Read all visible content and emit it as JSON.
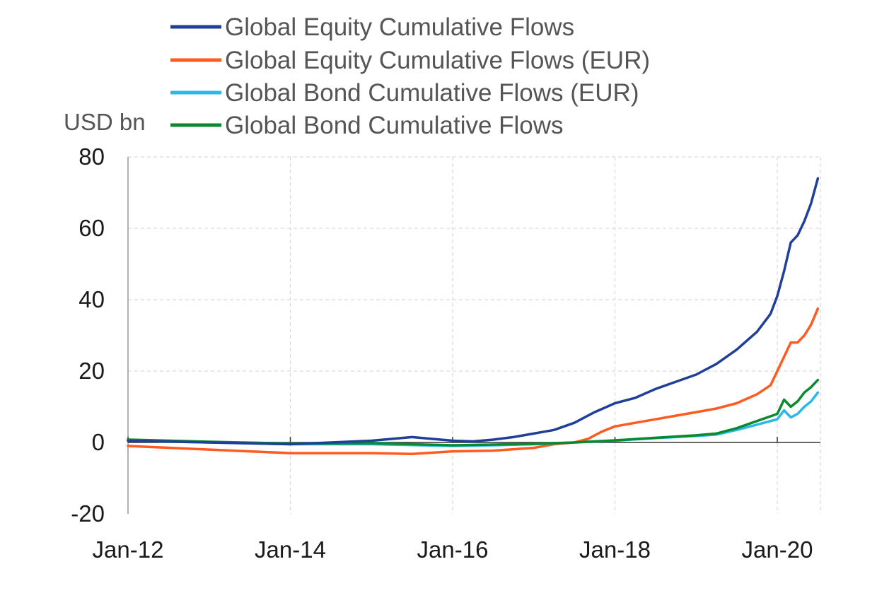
{
  "chart_data": {
    "type": "line",
    "ylabel": "USD bn",
    "ylim": [
      -20,
      80
    ],
    "yticks": [
      "80",
      "60",
      "40",
      "20",
      "0",
      "-20"
    ],
    "ytick_values": [
      80,
      60,
      40,
      20,
      0,
      -20
    ],
    "xlim": [
      "2012-01",
      "2020-07"
    ],
    "xticks": [
      "Jan-12",
      "Jan-14",
      "Jan-16",
      "Jan-18",
      "Jan-20"
    ],
    "xtick_values": [
      "2012-01",
      "2014-01",
      "2016-01",
      "2018-01",
      "2020-01"
    ],
    "grid": true,
    "legend_position": "top",
    "series": [
      {
        "name": "Global Equity Cumulative Flows",
        "color": "#1f3f99",
        "points": [
          [
            "2012-01",
            0.5
          ],
          [
            "2013-01",
            0.0
          ],
          [
            "2014-01",
            -0.5
          ],
          [
            "2014-07",
            0.0
          ],
          [
            "2015-01",
            0.5
          ],
          [
            "2015-04",
            1.0
          ],
          [
            "2015-07",
            1.5
          ],
          [
            "2015-10",
            1.0
          ],
          [
            "2016-01",
            0.5
          ],
          [
            "2016-04",
            0.3
          ],
          [
            "2016-07",
            0.8
          ],
          [
            "2016-10",
            1.5
          ],
          [
            "2017-01",
            2.5
          ],
          [
            "2017-04",
            3.5
          ],
          [
            "2017-07",
            5.5
          ],
          [
            "2017-10",
            8.5
          ],
          [
            "2018-01",
            11.0
          ],
          [
            "2018-04",
            12.5
          ],
          [
            "2018-07",
            15.0
          ],
          [
            "2018-10",
            17.0
          ],
          [
            "2019-01",
            19.0
          ],
          [
            "2019-04",
            22.0
          ],
          [
            "2019-07",
            26.0
          ],
          [
            "2019-10",
            31.0
          ],
          [
            "2019-12",
            36.0
          ],
          [
            "2020-01",
            41.0
          ],
          [
            "2020-02",
            48.0
          ],
          [
            "2020-03",
            56.0
          ],
          [
            "2020-04",
            58.0
          ],
          [
            "2020-05",
            62.0
          ],
          [
            "2020-06",
            67.0
          ],
          [
            "2020-07",
            74.0
          ]
        ]
      },
      {
        "name": "Global Equity Cumulative Flows (EUR)",
        "color": "#ff5a1f",
        "points": [
          [
            "2012-01",
            -1.0
          ],
          [
            "2013-01",
            -2.0
          ],
          [
            "2014-01",
            -3.0
          ],
          [
            "2014-07",
            -3.0
          ],
          [
            "2015-01",
            -3.0
          ],
          [
            "2015-07",
            -3.2
          ],
          [
            "2016-01",
            -2.5
          ],
          [
            "2016-07",
            -2.3
          ],
          [
            "2017-01",
            -1.5
          ],
          [
            "2017-04",
            -0.5
          ],
          [
            "2017-07",
            0.0
          ],
          [
            "2017-09",
            1.0
          ],
          [
            "2017-11",
            3.0
          ],
          [
            "2018-01",
            4.5
          ],
          [
            "2018-04",
            5.5
          ],
          [
            "2018-07",
            6.5
          ],
          [
            "2018-10",
            7.5
          ],
          [
            "2019-01",
            8.5
          ],
          [
            "2019-04",
            9.5
          ],
          [
            "2019-07",
            11.0
          ],
          [
            "2019-10",
            13.5
          ],
          [
            "2019-12",
            16.0
          ],
          [
            "2020-01",
            20.0
          ],
          [
            "2020-02",
            24.0
          ],
          [
            "2020-03",
            28.0
          ],
          [
            "2020-04",
            28.0
          ],
          [
            "2020-05",
            30.0
          ],
          [
            "2020-06",
            33.0
          ],
          [
            "2020-07",
            37.5
          ]
        ]
      },
      {
        "name": "Global Bond Cumulative Flows (EUR)",
        "color": "#2bb8e8",
        "points": [
          [
            "2012-01",
            0.5
          ],
          [
            "2013-01",
            0.0
          ],
          [
            "2014-01",
            -0.5
          ],
          [
            "2015-01",
            -0.5
          ],
          [
            "2016-01",
            -1.0
          ],
          [
            "2016-07",
            -0.8
          ],
          [
            "2017-01",
            -0.5
          ],
          [
            "2017-07",
            0.0
          ],
          [
            "2018-01",
            0.5
          ],
          [
            "2018-07",
            1.2
          ],
          [
            "2019-01",
            1.8
          ],
          [
            "2019-04",
            2.2
          ],
          [
            "2019-07",
            3.5
          ],
          [
            "2019-10",
            5.0
          ],
          [
            "2020-01",
            6.5
          ],
          [
            "2020-02",
            9.0
          ],
          [
            "2020-03",
            7.0
          ],
          [
            "2020-04",
            8.0
          ],
          [
            "2020-05",
            10.0
          ],
          [
            "2020-06",
            11.5
          ],
          [
            "2020-07",
            14.0
          ]
        ]
      },
      {
        "name": "Global Bond Cumulative Flows",
        "color": "#0a8a2e",
        "points": [
          [
            "2012-01",
            0.8
          ],
          [
            "2013-01",
            0.2
          ],
          [
            "2014-01",
            -0.3
          ],
          [
            "2015-01",
            -0.2
          ],
          [
            "2016-01",
            -0.8
          ],
          [
            "2016-07",
            -0.6
          ],
          [
            "2017-01",
            -0.4
          ],
          [
            "2017-07",
            0.0
          ],
          [
            "2018-01",
            0.6
          ],
          [
            "2018-07",
            1.3
          ],
          [
            "2019-01",
            2.0
          ],
          [
            "2019-04",
            2.5
          ],
          [
            "2019-07",
            4.0
          ],
          [
            "2019-10",
            6.0
          ],
          [
            "2020-01",
            8.0
          ],
          [
            "2020-02",
            12.0
          ],
          [
            "2020-03",
            10.0
          ],
          [
            "2020-04",
            11.5
          ],
          [
            "2020-05",
            14.0
          ],
          [
            "2020-06",
            15.5
          ],
          [
            "2020-07",
            17.5
          ]
        ]
      }
    ]
  }
}
